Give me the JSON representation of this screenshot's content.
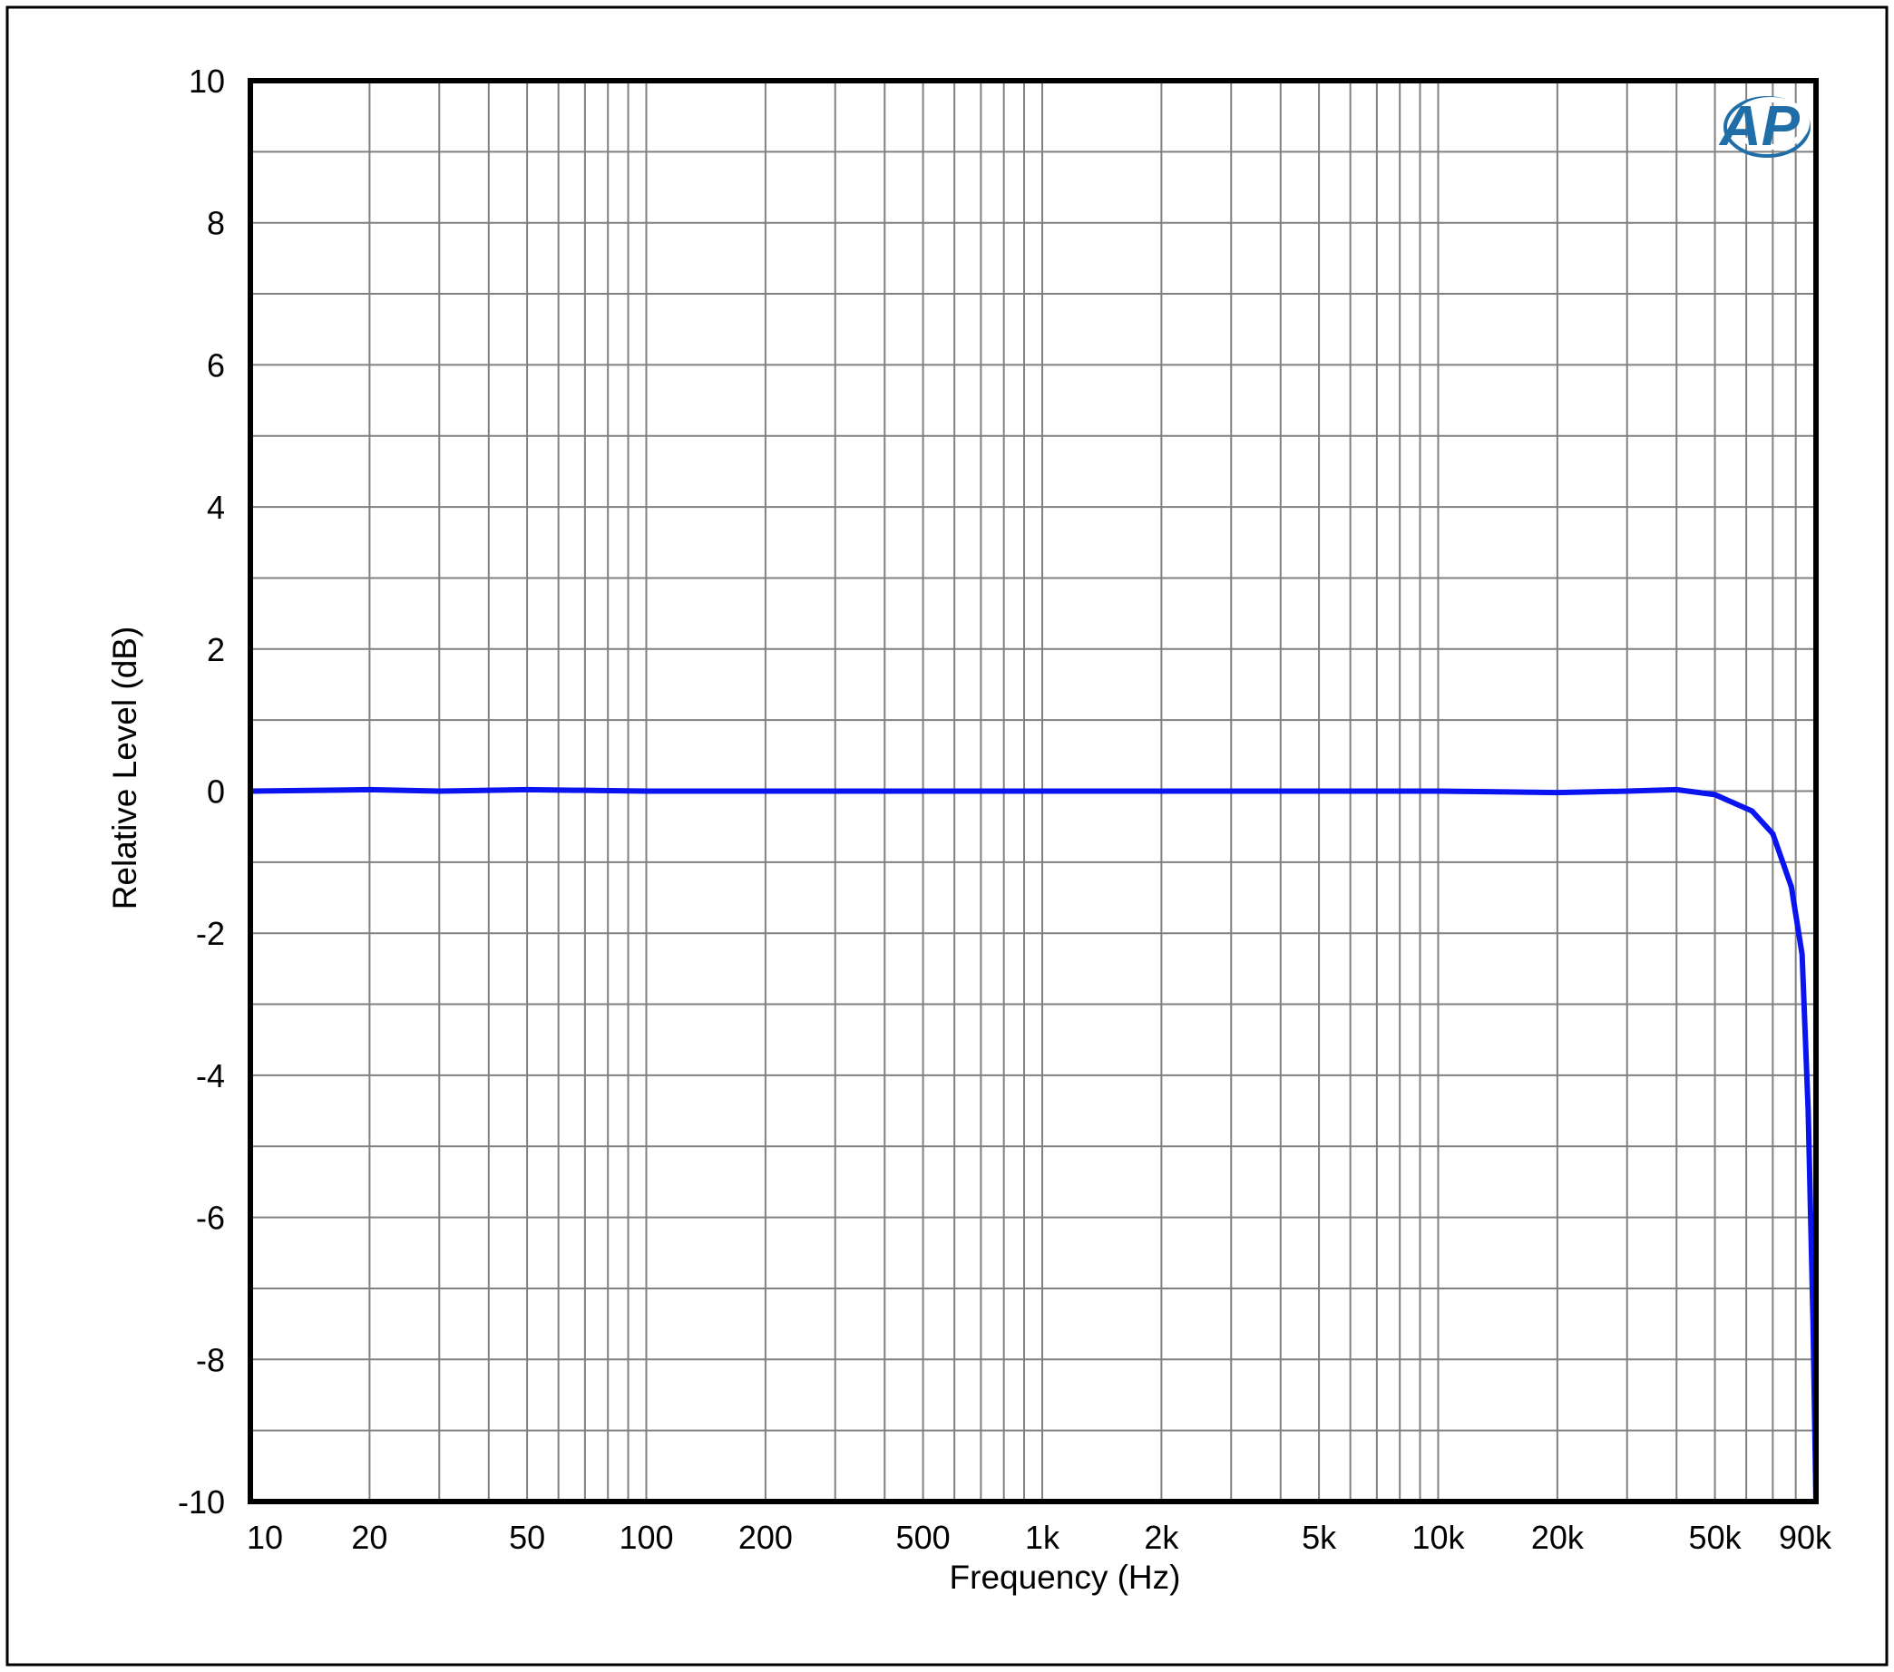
{
  "chart_data": {
    "type": "line",
    "title": "",
    "xlabel": "Frequency (Hz)",
    "ylabel": "Relative Level (dB)",
    "x_scale": "log",
    "xlim": [
      10,
      90000
    ],
    "ylim": [
      -10,
      10
    ],
    "grid": true,
    "legend": "none",
    "x_ticks": [
      {
        "value": 10,
        "label": "10"
      },
      {
        "value": 20,
        "label": "20"
      },
      {
        "value": 50,
        "label": "50"
      },
      {
        "value": 100,
        "label": "100"
      },
      {
        "value": 200,
        "label": "200"
      },
      {
        "value": 500,
        "label": "500"
      },
      {
        "value": 1000,
        "label": "1k"
      },
      {
        "value": 2000,
        "label": "2k"
      },
      {
        "value": 5000,
        "label": "5k"
      },
      {
        "value": 10000,
        "label": "10k"
      },
      {
        "value": 20000,
        "label": "20k"
      },
      {
        "value": 50000,
        "label": "50k"
      },
      {
        "value": 90000,
        "label": "90k"
      }
    ],
    "y_ticks": [
      {
        "value": 10,
        "label": "10"
      },
      {
        "value": 8,
        "label": "8"
      },
      {
        "value": 6,
        "label": "6"
      },
      {
        "value": 4,
        "label": "4"
      },
      {
        "value": 2,
        "label": "2"
      },
      {
        "value": 0,
        "label": "0"
      },
      {
        "value": -2,
        "label": "-2"
      },
      {
        "value": -4,
        "label": "-4"
      },
      {
        "value": -6,
        "label": "-6"
      },
      {
        "value": -8,
        "label": "-8"
      },
      {
        "value": -10,
        "label": "-10"
      }
    ],
    "series": [
      {
        "color": "#0a14f0",
        "points": [
          [
            10,
            0.0
          ],
          [
            20,
            0.02
          ],
          [
            30,
            0.0
          ],
          [
            50,
            0.02
          ],
          [
            100,
            0.0
          ],
          [
            200,
            0.0
          ],
          [
            300,
            0.0
          ],
          [
            500,
            0.0
          ],
          [
            1000,
            0.0
          ],
          [
            2000,
            0.0
          ],
          [
            5000,
            0.0
          ],
          [
            10000,
            0.0
          ],
          [
            20000,
            -0.02
          ],
          [
            30000,
            0.0
          ],
          [
            40000,
            0.02
          ],
          [
            50000,
            -0.05
          ],
          [
            62000,
            -0.28
          ],
          [
            70000,
            -0.6
          ],
          [
            78000,
            -1.35
          ],
          [
            83000,
            -2.3
          ],
          [
            86000,
            -4.5
          ],
          [
            88500,
            -7.5
          ],
          [
            90000,
            -10.0
          ]
        ]
      }
    ]
  },
  "colors": {
    "plot_frame": "#000000",
    "grid": "#808080",
    "logo": "#1f6ea8"
  },
  "logo": {
    "icon": "ap-logo-icon",
    "text": "AP"
  }
}
